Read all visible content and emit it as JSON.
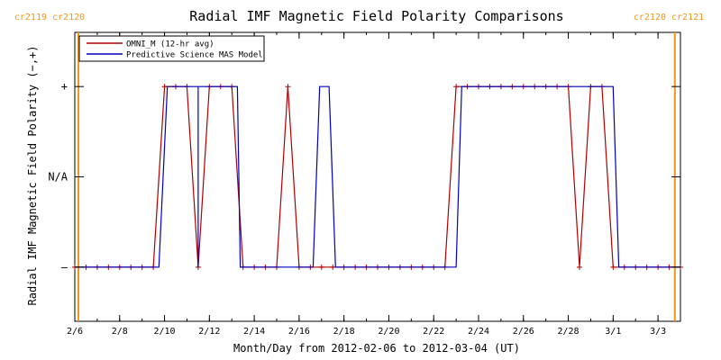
{
  "chart_data": {
    "type": "line",
    "title": "Radial IMF Magnetic Field Polarity Comparisons",
    "xlabel": "Month/Day from 2012-02-06 to 2012-03-04 (UT)",
    "ylabel": "Radial IMF Magnetic Field Polarity (−,+)",
    "x_ticks": [
      "2/6",
      "2/8",
      "2/10",
      "2/12",
      "2/14",
      "2/16",
      "2/18",
      "2/20",
      "2/22",
      "2/24",
      "2/26",
      "2/28",
      "3/1",
      "3/3"
    ],
    "y_ticks": [
      "–",
      "N/A",
      "+"
    ],
    "xlim": [
      "2012-02-06",
      "2012-03-04"
    ],
    "ylim": [
      -1.6,
      1.6
    ],
    "grid": false,
    "legend_position": "top-left",
    "rotation_markers": [
      {
        "x": "2012-02-06",
        "labels": [
          "cr2119",
          "cr2120"
        ],
        "color": "#f0961e"
      },
      {
        "x": "2012-03-03 18:00",
        "labels": [
          "cr2120",
          "cr2121"
        ],
        "color": "#f0961e"
      }
    ],
    "series": [
      {
        "name": "OMNI_M (12-hr avg)",
        "color": "#b00000",
        "marker": "+",
        "points": [
          {
            "x": "2012-02-06 00:00",
            "y": -1
          },
          {
            "x": "2012-02-06 12:00",
            "y": -1
          },
          {
            "x": "2012-02-07 00:00",
            "y": -1
          },
          {
            "x": "2012-02-07 12:00",
            "y": -1
          },
          {
            "x": "2012-02-08 00:00",
            "y": -1
          },
          {
            "x": "2012-02-08 12:00",
            "y": -1
          },
          {
            "x": "2012-02-09 00:00",
            "y": -1
          },
          {
            "x": "2012-02-09 12:00",
            "y": -1
          },
          {
            "x": "2012-02-10 00:00",
            "y": 1
          },
          {
            "x": "2012-02-10 12:00",
            "y": 1
          },
          {
            "x": "2012-02-11 00:00",
            "y": 1
          },
          {
            "x": "2012-02-11 12:00",
            "y": -1
          },
          {
            "x": "2012-02-12 00:00",
            "y": 1
          },
          {
            "x": "2012-02-12 12:00",
            "y": 1
          },
          {
            "x": "2012-02-13 00:00",
            "y": 1
          },
          {
            "x": "2012-02-13 12:00",
            "y": -1
          },
          {
            "x": "2012-02-14 00:00",
            "y": -1
          },
          {
            "x": "2012-02-14 12:00",
            "y": -1
          },
          {
            "x": "2012-02-15 00:00",
            "y": -1
          },
          {
            "x": "2012-02-15 12:00",
            "y": 1
          },
          {
            "x": "2012-02-16 00:00",
            "y": -1
          },
          {
            "x": "2012-02-16 12:00",
            "y": -1
          },
          {
            "x": "2012-02-17 00:00",
            "y": -1
          },
          {
            "x": "2012-02-17 12:00",
            "y": -1
          },
          {
            "x": "2012-02-18 00:00",
            "y": -1
          },
          {
            "x": "2012-02-18 12:00",
            "y": -1
          },
          {
            "x": "2012-02-19 00:00",
            "y": -1
          },
          {
            "x": "2012-02-19 12:00",
            "y": -1
          },
          {
            "x": "2012-02-20 00:00",
            "y": -1
          },
          {
            "x": "2012-02-20 12:00",
            "y": -1
          },
          {
            "x": "2012-02-21 00:00",
            "y": -1
          },
          {
            "x": "2012-02-21 12:00",
            "y": -1
          },
          {
            "x": "2012-02-22 00:00",
            "y": -1
          },
          {
            "x": "2012-02-22 12:00",
            "y": -1
          },
          {
            "x": "2012-02-23 00:00",
            "y": 1
          },
          {
            "x": "2012-02-23 12:00",
            "y": 1
          },
          {
            "x": "2012-02-24 00:00",
            "y": 1
          },
          {
            "x": "2012-02-24 12:00",
            "y": 1
          },
          {
            "x": "2012-02-25 00:00",
            "y": 1
          },
          {
            "x": "2012-02-25 12:00",
            "y": 1
          },
          {
            "x": "2012-02-26 00:00",
            "y": 1
          },
          {
            "x": "2012-02-26 12:00",
            "y": 1
          },
          {
            "x": "2012-02-27 00:00",
            "y": 1
          },
          {
            "x": "2012-02-27 12:00",
            "y": 1
          },
          {
            "x": "2012-02-28 00:00",
            "y": 1
          },
          {
            "x": "2012-02-28 12:00",
            "y": -1
          },
          {
            "x": "2012-02-29 00:00",
            "y": 1
          },
          {
            "x": "2012-02-29 12:00",
            "y": 1
          },
          {
            "x": "2012-03-01 00:00",
            "y": -1
          },
          {
            "x": "2012-03-01 12:00",
            "y": -1
          },
          {
            "x": "2012-03-02 00:00",
            "y": -1
          },
          {
            "x": "2012-03-02 12:00",
            "y": -1
          },
          {
            "x": "2012-03-03 00:00",
            "y": -1
          },
          {
            "x": "2012-03-03 12:00",
            "y": -1
          },
          {
            "x": "2012-03-04 00:00",
            "y": -1
          }
        ]
      },
      {
        "name": "Predictive Science MAS Model",
        "color": "#0000c0",
        "points": [
          {
            "x": "2012-02-06 00:00",
            "y": -1
          },
          {
            "x": "2012-02-09 18:00",
            "y": -1
          },
          {
            "x": "2012-02-10 03:00",
            "y": 1
          },
          {
            "x": "2012-02-11 12:00",
            "y": 1
          },
          {
            "x": "2012-02-11 12:00",
            "y": -1
          },
          {
            "x": "2012-02-11 12:00",
            "y": 1
          },
          {
            "x": "2012-02-13 06:00",
            "y": 1
          },
          {
            "x": "2012-02-13 09:00",
            "y": -1
          },
          {
            "x": "2012-02-16 15:00",
            "y": -1
          },
          {
            "x": "2012-02-16 22:00",
            "y": 1
          },
          {
            "x": "2012-02-17 08:00",
            "y": 1
          },
          {
            "x": "2012-02-17 15:00",
            "y": -1
          },
          {
            "x": "2012-02-23 00:00",
            "y": -1
          },
          {
            "x": "2012-02-23 06:00",
            "y": 1
          },
          {
            "x": "2012-03-01 00:00",
            "y": 1
          },
          {
            "x": "2012-03-01 06:00",
            "y": -1
          },
          {
            "x": "2012-03-04 00:00",
            "y": -1
          }
        ]
      }
    ]
  }
}
